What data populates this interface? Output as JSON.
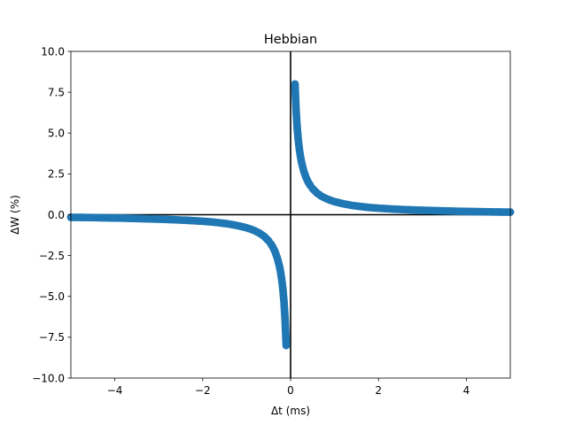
{
  "chart_data": {
    "type": "scatter",
    "title": "Hebbian",
    "xlabel": "Δt (ms)",
    "ylabel": "ΔW (%)",
    "xlim": [
      -5,
      5
    ],
    "ylim": [
      -10,
      10
    ],
    "xticks": [
      -4,
      -2,
      0,
      2,
      4
    ],
    "xtick_labels": [
      "−4",
      "−2",
      "0",
      "2",
      "4"
    ],
    "yticks": [
      10,
      7.5,
      5,
      2.5,
      0,
      -2.5,
      -5,
      -7.5,
      -10
    ],
    "ytick_labels": [
      "10.0",
      "7.5",
      "5.0",
      "2.5",
      "0.0",
      "−2.5",
      "−5.0",
      "−7.5",
      "−10.0"
    ],
    "grid": false,
    "reference_lines": {
      "horizontal_y": 0,
      "vertical_x": 0
    },
    "marker_color": "#1f77b4",
    "series": [
      {
        "x": [
          0.1,
          0.125,
          0.15,
          0.175,
          0.2,
          0.225,
          0.25,
          0.3,
          0.35,
          0.4,
          0.45,
          0.5,
          0.6,
          0.7,
          0.8,
          0.9,
          1.0,
          1.2,
          1.4,
          1.6,
          1.8,
          2.0,
          2.3,
          2.6,
          3.0,
          3.4,
          3.8,
          4.2,
          4.6,
          5.0
        ],
        "y": [
          8.0,
          6.4,
          5.33,
          4.57,
          4.0,
          3.56,
          3.2,
          2.67,
          2.29,
          2.0,
          1.78,
          1.6,
          1.33,
          1.14,
          1.0,
          0.89,
          0.8,
          0.67,
          0.57,
          0.5,
          0.44,
          0.4,
          0.35,
          0.31,
          0.27,
          0.24,
          0.21,
          0.19,
          0.17,
          0.16
        ]
      },
      {
        "x": [
          -0.1,
          -0.125,
          -0.15,
          -0.175,
          -0.2,
          -0.225,
          -0.25,
          -0.3,
          -0.35,
          -0.4,
          -0.45,
          -0.5,
          -0.6,
          -0.7,
          -0.8,
          -0.9,
          -1.0,
          -1.2,
          -1.4,
          -1.6,
          -1.8,
          -2.0,
          -2.3,
          -2.6,
          -3.0,
          -3.4,
          -3.8,
          -4.2,
          -4.6,
          -5.0
        ],
        "y": [
          -8.0,
          -6.4,
          -5.33,
          -4.57,
          -4.0,
          -3.56,
          -3.2,
          -2.67,
          -2.29,
          -2.0,
          -1.78,
          -1.6,
          -1.33,
          -1.14,
          -1.0,
          -0.89,
          -0.8,
          -0.67,
          -0.57,
          -0.5,
          -0.44,
          -0.4,
          -0.35,
          -0.31,
          -0.27,
          -0.24,
          -0.21,
          -0.19,
          -0.17,
          -0.16
        ]
      }
    ]
  }
}
